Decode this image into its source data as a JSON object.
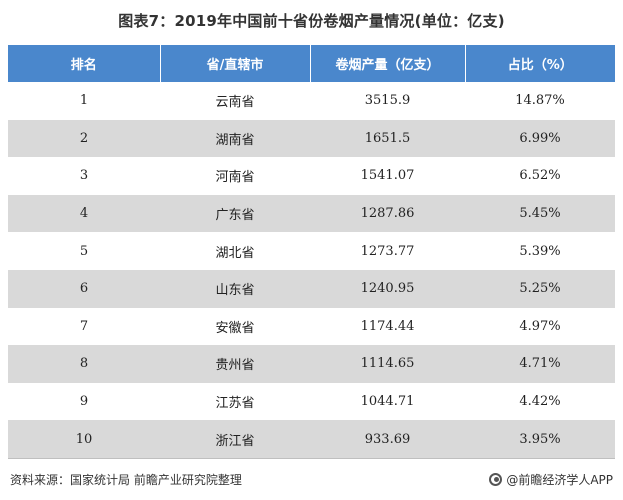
{
  "title": "图表7：2019年中国前十省份卷烟产量情况(单位：亿支)",
  "table": {
    "headers": [
      "排名",
      "省/直辖市",
      "卷烟产量（亿支）",
      "占比（%）"
    ],
    "rows": [
      [
        "1",
        "云南省",
        "3515.9",
        "14.87%"
      ],
      [
        "2",
        "湖南省",
        "1651.5",
        "6.99%"
      ],
      [
        "3",
        "河南省",
        "1541.07",
        "6.52%"
      ],
      [
        "4",
        "广东省",
        "1287.86",
        "5.45%"
      ],
      [
        "5",
        "湖北省",
        "1273.77",
        "5.39%"
      ],
      [
        "6",
        "山东省",
        "1240.95",
        "5.25%"
      ],
      [
        "7",
        "安徽省",
        "1174.44",
        "4.97%"
      ],
      [
        "8",
        "贵州省",
        "1114.65",
        "4.71%"
      ],
      [
        "9",
        "江苏省",
        "1044.71",
        "4.42%"
      ],
      [
        "10",
        "浙江省",
        "933.69",
        "3.95%"
      ]
    ]
  },
  "footer": {
    "source": "资料来源：国家统计局 前瞻产业研究院整理",
    "brand": "@前瞻经济学人APP",
    "brand_icon": "qianzhan-logo-icon"
  },
  "watermark": "前瞻产业研究院"
}
